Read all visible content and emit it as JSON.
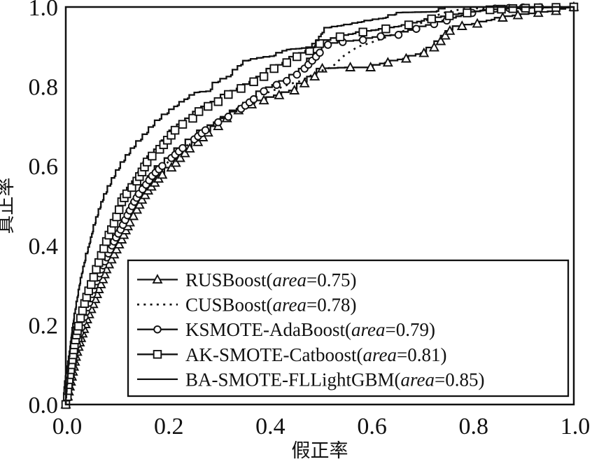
{
  "figure": {
    "background": "#ffffff",
    "ink": "#111111"
  },
  "axes": {
    "x_label": "假正率",
    "y_label": "真正率",
    "x_ticks": [
      "0.0",
      "0.2",
      "0.4",
      "0.6",
      "0.8",
      "1.0"
    ],
    "y_ticks": [
      "0.0",
      "0.2",
      "0.4",
      "0.6",
      "0.8",
      "1.0"
    ],
    "xlim": [
      0,
      1
    ],
    "ylim": [
      0,
      1
    ]
  },
  "chart_data": {
    "type": "line",
    "title": "",
    "xlabel": "假正率",
    "ylabel": "真正率",
    "xlim": [
      0,
      1
    ],
    "ylim": [
      0,
      1
    ],
    "grid": false,
    "legend_position": "lower right",
    "series": [
      {
        "name": "RUSBoost",
        "area": 0.75,
        "label_pre": "RUSBoost(",
        "label_italic": "area",
        "label_post": "=0.75)",
        "marker": "triangle",
        "line_style": "solid",
        "points": [
          [
            0,
            0
          ],
          [
            0.004,
            0.02
          ],
          [
            0.008,
            0.045
          ],
          [
            0.012,
            0.07
          ],
          [
            0.016,
            0.095
          ],
          [
            0.02,
            0.12
          ],
          [
            0.025,
            0.145
          ],
          [
            0.03,
            0.167
          ],
          [
            0.036,
            0.19
          ],
          [
            0.042,
            0.214
          ],
          [
            0.05,
            0.24
          ],
          [
            0.058,
            0.265
          ],
          [
            0.065,
            0.29
          ],
          [
            0.073,
            0.315
          ],
          [
            0.08,
            0.34
          ],
          [
            0.09,
            0.365
          ],
          [
            0.1,
            0.39
          ],
          [
            0.11,
            0.415
          ],
          [
            0.118,
            0.438
          ],
          [
            0.126,
            0.458
          ],
          [
            0.14,
            0.49
          ],
          [
            0.15,
            0.515
          ],
          [
            0.162,
            0.538
          ],
          [
            0.175,
            0.558
          ],
          [
            0.19,
            0.578
          ],
          [
            0.208,
            0.596
          ],
          [
            0.225,
            0.62
          ],
          [
            0.244,
            0.644
          ],
          [
            0.26,
            0.66
          ],
          [
            0.28,
            0.684
          ],
          [
            0.3,
            0.7
          ],
          [
            0.317,
            0.72
          ],
          [
            0.34,
            0.74
          ],
          [
            0.366,
            0.755
          ],
          [
            0.39,
            0.765
          ],
          [
            0.42,
            0.778
          ],
          [
            0.45,
            0.79
          ],
          [
            0.47,
            0.808
          ],
          [
            0.49,
            0.825
          ],
          [
            0.505,
            0.845
          ],
          [
            0.56,
            0.848
          ],
          [
            0.6,
            0.848
          ],
          [
            0.634,
            0.86
          ],
          [
            0.67,
            0.87
          ],
          [
            0.705,
            0.884
          ],
          [
            0.725,
            0.898
          ],
          [
            0.738,
            0.914
          ],
          [
            0.747,
            0.928
          ],
          [
            0.756,
            0.94
          ],
          [
            0.78,
            0.952
          ],
          [
            0.81,
            0.958
          ],
          [
            0.86,
            0.973
          ],
          [
            0.89,
            0.979
          ],
          [
            0.93,
            0.985
          ],
          [
            0.965,
            0.99
          ],
          [
            1,
            1
          ]
        ]
      },
      {
        "name": "CUSBoost",
        "area": 0.78,
        "label_pre": "CUSBoost(",
        "label_italic": "area",
        "label_post": "=0.78)",
        "marker": "none",
        "line_style": "dotted",
        "points": [
          [
            0,
            0
          ],
          [
            0.005,
            0.04
          ],
          [
            0.01,
            0.09
          ],
          [
            0.016,
            0.135
          ],
          [
            0.022,
            0.175
          ],
          [
            0.03,
            0.22
          ],
          [
            0.04,
            0.262
          ],
          [
            0.052,
            0.3
          ],
          [
            0.063,
            0.335
          ],
          [
            0.074,
            0.365
          ],
          [
            0.086,
            0.395
          ],
          [
            0.097,
            0.42
          ],
          [
            0.107,
            0.448
          ],
          [
            0.118,
            0.472
          ],
          [
            0.128,
            0.497
          ],
          [
            0.143,
            0.523
          ],
          [
            0.157,
            0.548
          ],
          [
            0.175,
            0.574
          ],
          [
            0.193,
            0.6
          ],
          [
            0.213,
            0.624
          ],
          [
            0.237,
            0.65
          ],
          [
            0.26,
            0.675
          ],
          [
            0.285,
            0.698
          ],
          [
            0.31,
            0.718
          ],
          [
            0.335,
            0.74
          ],
          [
            0.36,
            0.763
          ],
          [
            0.38,
            0.778
          ],
          [
            0.4,
            0.786
          ],
          [
            0.42,
            0.796
          ],
          [
            0.44,
            0.806
          ],
          [
            0.46,
            0.813
          ],
          [
            0.48,
            0.826
          ],
          [
            0.5,
            0.838
          ],
          [
            0.525,
            0.85
          ],
          [
            0.545,
            0.875
          ],
          [
            0.56,
            0.888
          ],
          [
            0.575,
            0.9
          ],
          [
            0.6,
            0.91
          ],
          [
            0.63,
            0.924
          ],
          [
            0.65,
            0.934
          ],
          [
            0.676,
            0.944
          ],
          [
            0.7,
            0.96
          ],
          [
            0.72,
            0.974
          ],
          [
            0.75,
            0.988
          ],
          [
            0.788,
            0.996
          ],
          [
            0.85,
            0.998
          ],
          [
            1,
            1
          ]
        ]
      },
      {
        "name": "KSMOTE-AdaBoost",
        "area": 0.79,
        "label_pre": "KSMOTE-AdaBoost(",
        "label_italic": "area",
        "label_post": "=0.79)",
        "marker": "circle",
        "line_style": "solid",
        "points": [
          [
            0,
            0
          ],
          [
            0.005,
            0.03
          ],
          [
            0.008,
            0.06
          ],
          [
            0.012,
            0.09
          ],
          [
            0.016,
            0.12
          ],
          [
            0.022,
            0.15
          ],
          [
            0.028,
            0.18
          ],
          [
            0.034,
            0.208
          ],
          [
            0.04,
            0.233
          ],
          [
            0.046,
            0.256
          ],
          [
            0.052,
            0.278
          ],
          [
            0.057,
            0.3
          ],
          [
            0.064,
            0.32
          ],
          [
            0.07,
            0.34
          ],
          [
            0.077,
            0.36
          ],
          [
            0.084,
            0.38
          ],
          [
            0.091,
            0.4
          ],
          [
            0.099,
            0.42
          ],
          [
            0.108,
            0.44
          ],
          [
            0.117,
            0.464
          ],
          [
            0.126,
            0.488
          ],
          [
            0.135,
            0.51
          ],
          [
            0.144,
            0.53
          ],
          [
            0.158,
            0.553
          ],
          [
            0.17,
            0.575
          ],
          [
            0.19,
            0.6
          ],
          [
            0.208,
            0.62
          ],
          [
            0.23,
            0.645
          ],
          [
            0.253,
            0.667
          ],
          [
            0.275,
            0.69
          ],
          [
            0.3,
            0.71
          ],
          [
            0.32,
            0.724
          ],
          [
            0.345,
            0.744
          ],
          [
            0.37,
            0.768
          ],
          [
            0.39,
            0.788
          ],
          [
            0.415,
            0.804
          ],
          [
            0.435,
            0.814
          ],
          [
            0.455,
            0.83
          ],
          [
            0.47,
            0.845
          ],
          [
            0.5,
            0.885
          ],
          [
            0.516,
            0.905
          ],
          [
            0.545,
            0.912
          ],
          [
            0.585,
            0.917
          ],
          [
            0.62,
            0.926
          ],
          [
            0.655,
            0.93
          ],
          [
            0.69,
            0.945
          ],
          [
            0.725,
            0.957
          ],
          [
            0.75,
            0.966
          ],
          [
            0.8,
            0.985
          ],
          [
            0.845,
            0.996
          ],
          [
            0.9,
            0.999
          ],
          [
            1,
            1
          ]
        ]
      },
      {
        "name": "AK-SMOTE-Catboost",
        "area": 0.81,
        "label_pre": "AK-SMOTE-Catboost(",
        "label_italic": "area",
        "label_post": "=0.81)",
        "marker": "square",
        "line_style": "solid",
        "points": [
          [
            0,
            0
          ],
          [
            0.003,
            0.02
          ],
          [
            0.005,
            0.05
          ],
          [
            0.008,
            0.075
          ],
          [
            0.011,
            0.1
          ],
          [
            0.014,
            0.125
          ],
          [
            0.017,
            0.15
          ],
          [
            0.021,
            0.175
          ],
          [
            0.025,
            0.197
          ],
          [
            0.029,
            0.217
          ],
          [
            0.033,
            0.236
          ],
          [
            0.037,
            0.254
          ],
          [
            0.041,
            0.27
          ],
          [
            0.045,
            0.286
          ],
          [
            0.05,
            0.302
          ],
          [
            0.055,
            0.32
          ],
          [
            0.06,
            0.34
          ],
          [
            0.065,
            0.357
          ],
          [
            0.07,
            0.375
          ],
          [
            0.075,
            0.392
          ],
          [
            0.08,
            0.41
          ],
          [
            0.085,
            0.426
          ],
          [
            0.09,
            0.44
          ],
          [
            0.095,
            0.456
          ],
          [
            0.1,
            0.472
          ],
          [
            0.105,
            0.49
          ],
          [
            0.11,
            0.51
          ],
          [
            0.12,
            0.53
          ],
          [
            0.13,
            0.546
          ],
          [
            0.14,
            0.562
          ],
          [
            0.15,
            0.585
          ],
          [
            0.16,
            0.61
          ],
          [
            0.17,
            0.625
          ],
          [
            0.185,
            0.642
          ],
          [
            0.2,
            0.665
          ],
          [
            0.215,
            0.69
          ],
          [
            0.23,
            0.705
          ],
          [
            0.25,
            0.72
          ],
          [
            0.262,
            0.737
          ],
          [
            0.28,
            0.75
          ],
          [
            0.3,
            0.762
          ],
          [
            0.32,
            0.78
          ],
          [
            0.345,
            0.795
          ],
          [
            0.37,
            0.812
          ],
          [
            0.39,
            0.825
          ],
          [
            0.41,
            0.845
          ],
          [
            0.435,
            0.86
          ],
          [
            0.455,
            0.875
          ],
          [
            0.48,
            0.89
          ],
          [
            0.5,
            0.908
          ],
          [
            0.54,
            0.925
          ],
          [
            0.585,
            0.937
          ],
          [
            0.63,
            0.945
          ],
          [
            0.675,
            0.955
          ],
          [
            0.72,
            0.97
          ],
          [
            0.755,
            0.978
          ],
          [
            0.79,
            0.985
          ],
          [
            0.835,
            0.993
          ],
          [
            0.88,
            0.996
          ],
          [
            0.93,
            0.998
          ],
          [
            1,
            1
          ]
        ]
      },
      {
        "name": "BA-SMOTE-FLLightGBM",
        "area": 0.85,
        "label_pre": "BA-SMOTE-FLLightGBM(",
        "label_italic": "area",
        "label_post": "=0.85)",
        "marker": "none",
        "line_style": "solid",
        "points": [
          [
            0,
            0
          ],
          [
            0.003,
            0.05
          ],
          [
            0.006,
            0.1
          ],
          [
            0.009,
            0.14
          ],
          [
            0.012,
            0.175
          ],
          [
            0.016,
            0.21
          ],
          [
            0.02,
            0.24
          ],
          [
            0.024,
            0.27
          ],
          [
            0.028,
            0.3
          ],
          [
            0.033,
            0.33
          ],
          [
            0.038,
            0.357
          ],
          [
            0.043,
            0.38
          ],
          [
            0.048,
            0.405
          ],
          [
            0.053,
            0.43
          ],
          [
            0.058,
            0.452
          ],
          [
            0.063,
            0.472
          ],
          [
            0.068,
            0.492
          ],
          [
            0.073,
            0.51
          ],
          [
            0.08,
            0.53
          ],
          [
            0.088,
            0.55
          ],
          [
            0.096,
            0.57
          ],
          [
            0.105,
            0.59
          ],
          [
            0.115,
            0.61
          ],
          [
            0.125,
            0.628
          ],
          [
            0.135,
            0.645
          ],
          [
            0.148,
            0.663
          ],
          [
            0.16,
            0.68
          ],
          [
            0.172,
            0.698
          ],
          [
            0.185,
            0.715
          ],
          [
            0.2,
            0.73
          ],
          [
            0.22,
            0.75
          ],
          [
            0.24,
            0.768
          ],
          [
            0.26,
            0.785
          ],
          [
            0.285,
            0.788
          ],
          [
            0.3,
            0.81
          ],
          [
            0.325,
            0.825
          ],
          [
            0.345,
            0.852
          ],
          [
            0.36,
            0.865
          ],
          [
            0.385,
            0.872
          ],
          [
            0.41,
            0.876
          ],
          [
            0.44,
            0.893
          ],
          [
            0.49,
            0.898
          ],
          [
            0.505,
            0.932
          ],
          [
            0.52,
            0.948
          ],
          [
            0.56,
            0.956
          ],
          [
            0.6,
            0.966
          ],
          [
            0.63,
            0.972
          ],
          [
            0.648,
            0.98
          ],
          [
            0.66,
            0.986
          ],
          [
            0.73,
            0.988
          ],
          [
            0.755,
            1
          ],
          [
            1,
            1
          ]
        ]
      }
    ]
  }
}
